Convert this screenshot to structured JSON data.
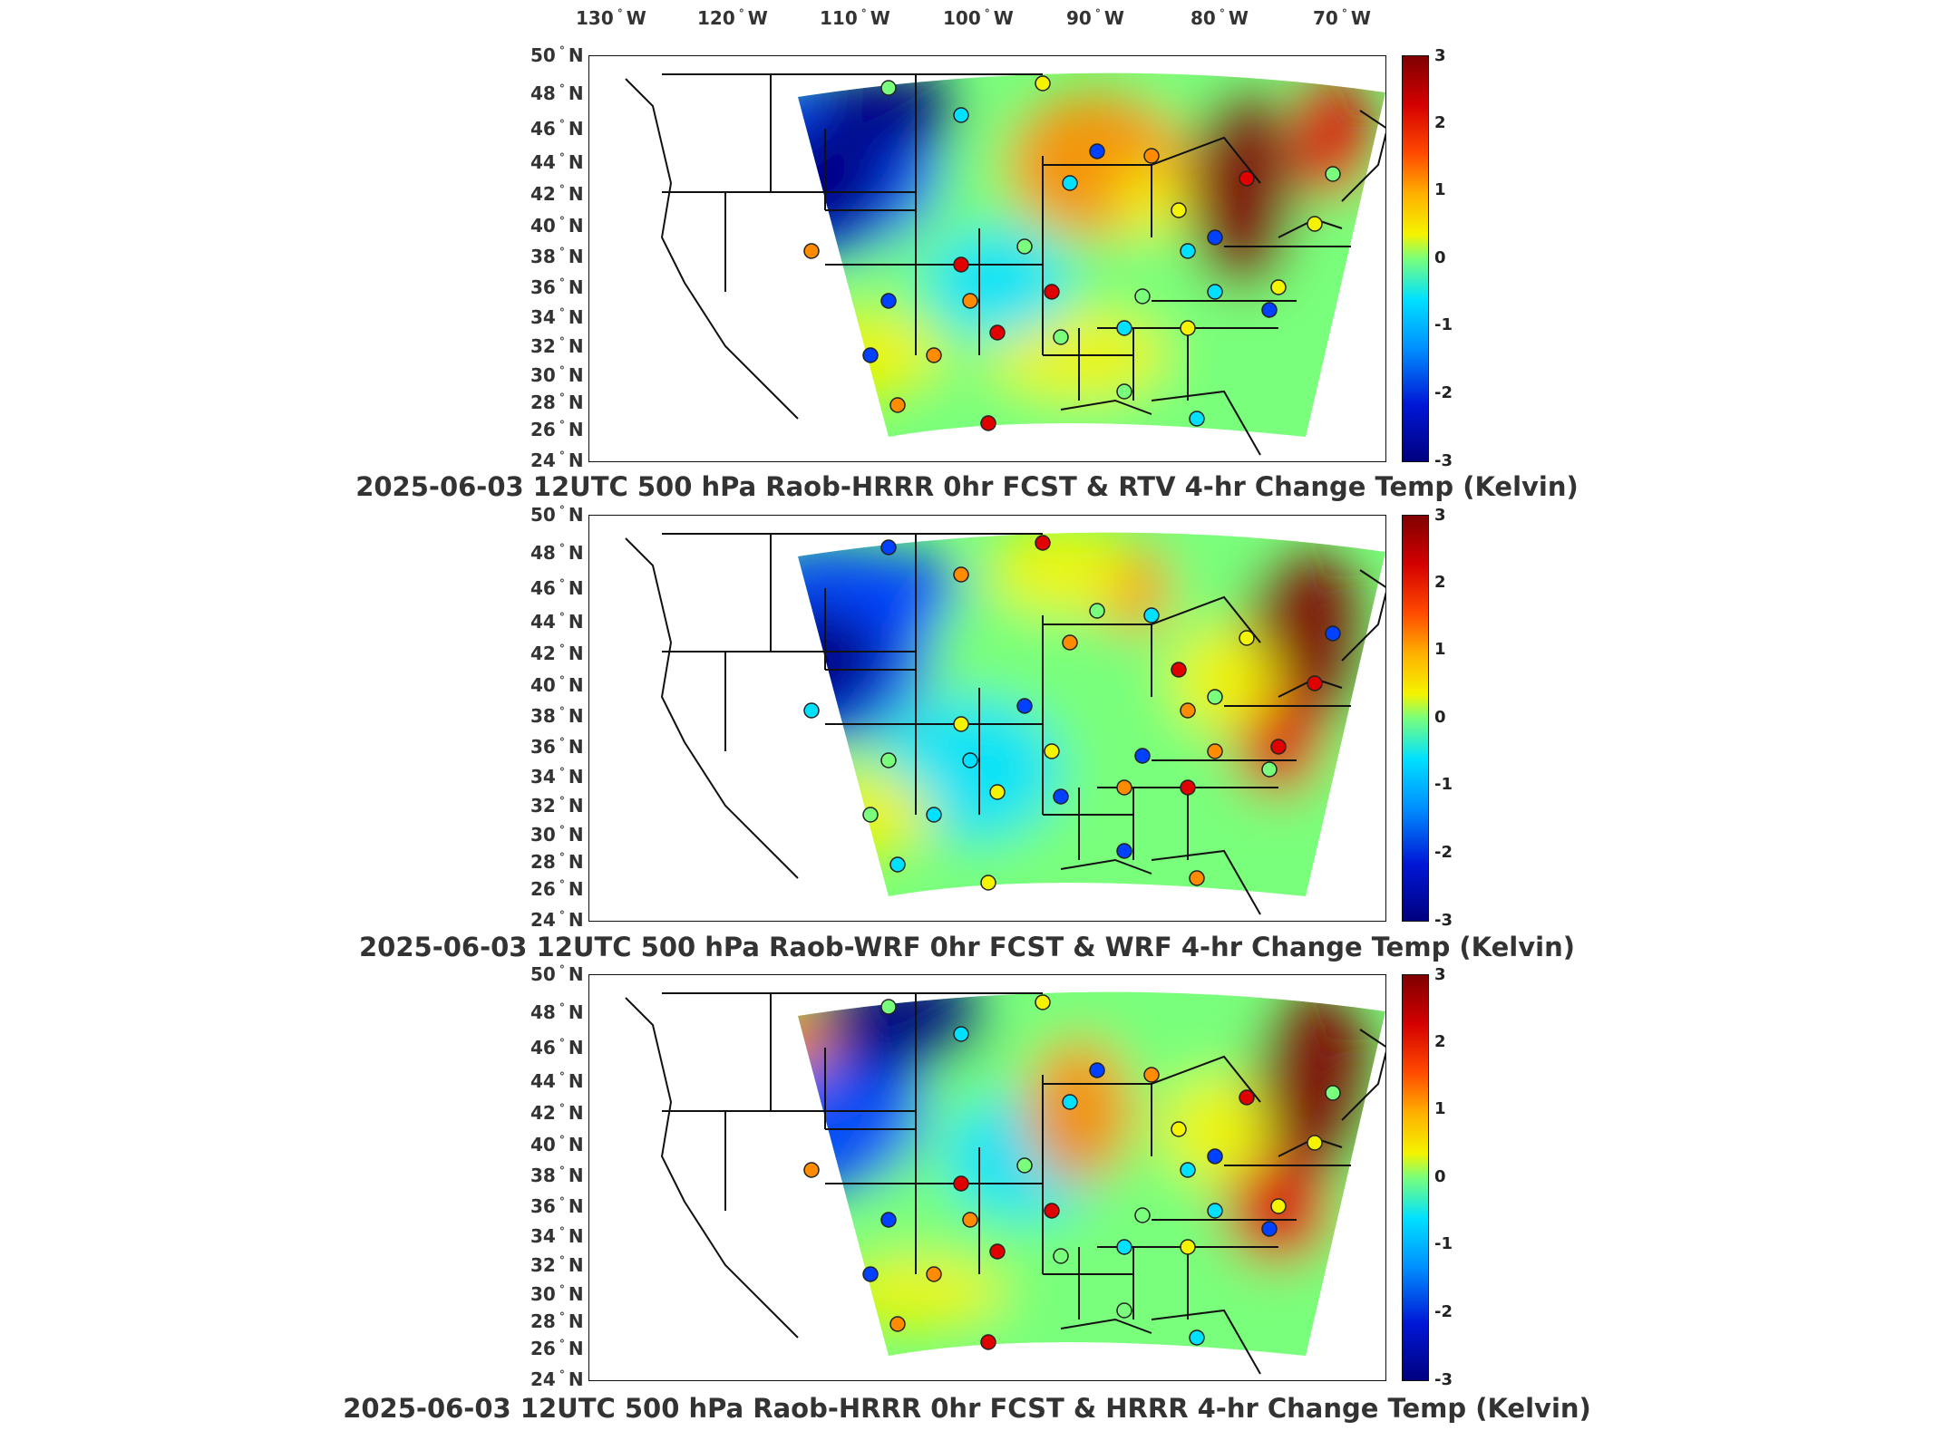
{
  "longitude_labels": [
    {
      "deg": "130",
      "hem": "W"
    },
    {
      "deg": "120",
      "hem": "W"
    },
    {
      "deg": "110",
      "hem": "W"
    },
    {
      "deg": "100",
      "hem": "W"
    },
    {
      "deg": "90",
      "hem": "W"
    },
    {
      "deg": "80",
      "hem": "W"
    },
    {
      "deg": "70",
      "hem": "W"
    }
  ],
  "latitude_labels": [
    {
      "deg": "50",
      "hem": "N"
    },
    {
      "deg": "48",
      "hem": "N"
    },
    {
      "deg": "46",
      "hem": "N"
    },
    {
      "deg": "44",
      "hem": "N"
    },
    {
      "deg": "42",
      "hem": "N"
    },
    {
      "deg": "40",
      "hem": "N"
    },
    {
      "deg": "38",
      "hem": "N"
    },
    {
      "deg": "36",
      "hem": "N"
    },
    {
      "deg": "34",
      "hem": "N"
    },
    {
      "deg": "32",
      "hem": "N"
    },
    {
      "deg": "30",
      "hem": "N"
    },
    {
      "deg": "28",
      "hem": "N"
    },
    {
      "deg": "26",
      "hem": "N"
    },
    {
      "deg": "24",
      "hem": "N"
    }
  ],
  "colorbar_ticks": [
    "3",
    "2",
    "1",
    "0",
    "-1",
    "-2",
    "-3"
  ],
  "colorbar_range": [
    -3,
    3
  ],
  "colormap": "jet",
  "panels": [
    {
      "title": "2025-06-03 12UTC 500 hPa Raob-HRRR 0hr FCST & RTV 4-hr Change Temp (Kelvin)"
    },
    {
      "title": "2025-06-03 12UTC 500 hPa Raob-WRF 0hr FCST & WRF 4-hr Change Temp (Kelvin)"
    },
    {
      "title": "2025-06-03 12UTC 500 hPa Raob-HRRR 0hr FCST & HRRR 4-hr Change Temp (Kelvin)"
    }
  ],
  "colors": {
    "dark_red": "#7f0000",
    "red": "#e00000",
    "orange": "#ff8c00",
    "yellow": "#f4f400",
    "green": "#79ff7c",
    "cyan": "#00e1ff",
    "blue": "#0040ff",
    "dark_blue": "#00007f"
  }
}
